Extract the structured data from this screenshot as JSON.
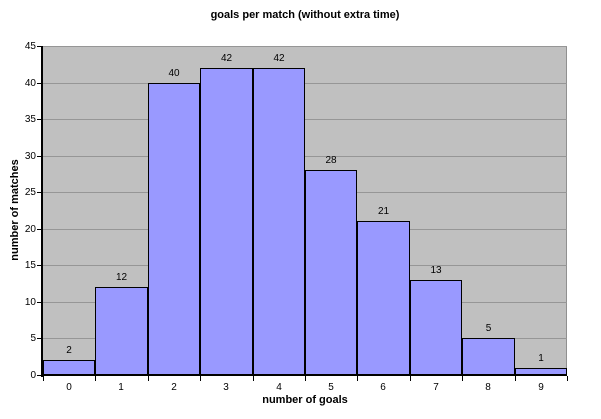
{
  "chart_data": {
    "type": "bar",
    "title": "goals per match (without extra time)",
    "xlabel": "number of goals",
    "ylabel": "number of matches",
    "categories": [
      "0",
      "1",
      "2",
      "3",
      "4",
      "5",
      "6",
      "7",
      "8",
      "9"
    ],
    "values": [
      2,
      12,
      40,
      42,
      42,
      28,
      21,
      13,
      5,
      1
    ],
    "data_labels": [
      "2",
      "12",
      "40",
      "42",
      "42",
      "28",
      "21",
      "13",
      "5",
      "1"
    ],
    "yticks": [
      0,
      5,
      10,
      15,
      20,
      25,
      30,
      35,
      40,
      45
    ],
    "ylim": [
      0,
      45
    ],
    "grid": true,
    "legend_position": "none",
    "bar_gap": 0,
    "colors": {
      "bar_fill": "#9999ff",
      "bar_border": "#000000",
      "plot_bg": "#c0c0c0",
      "gridline": "#969696",
      "axis_line": "#000000",
      "background": "#ffffff",
      "text": "#000000"
    }
  }
}
